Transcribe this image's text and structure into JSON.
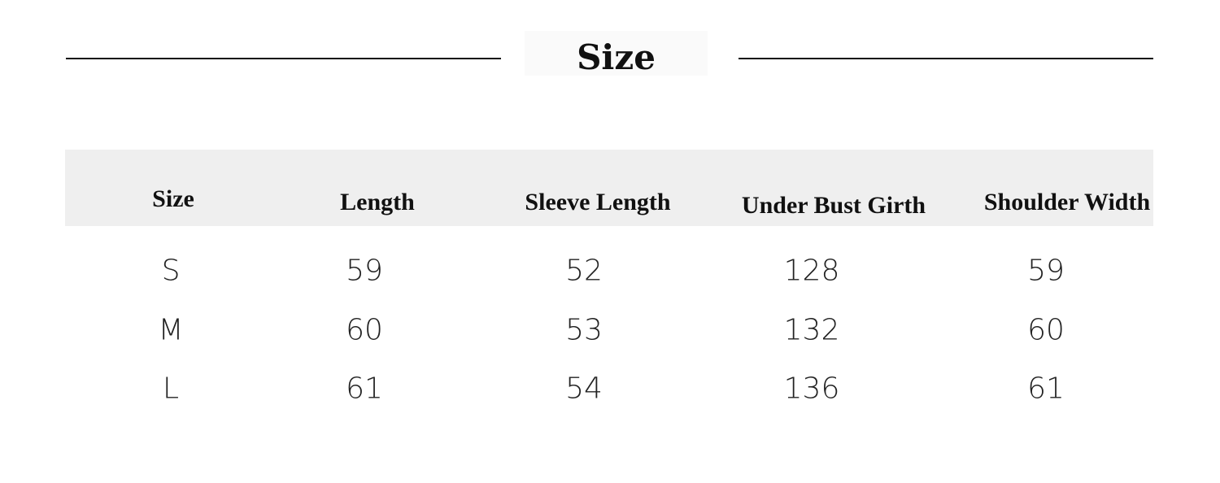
{
  "title": "Size",
  "table": {
    "headers": [
      "Size",
      "Length",
      "Sleeve Length",
      "Under Bust Girth",
      "Shoulder Width"
    ],
    "rows": [
      [
        "S",
        "59",
        "52",
        "128",
        "59"
      ],
      [
        "M",
        "60",
        "53",
        "132",
        "60"
      ],
      [
        "L",
        "61",
        "54",
        "136",
        "61"
      ]
    ]
  },
  "colors": {
    "header_band": "#efefef",
    "text": "#111111"
  }
}
